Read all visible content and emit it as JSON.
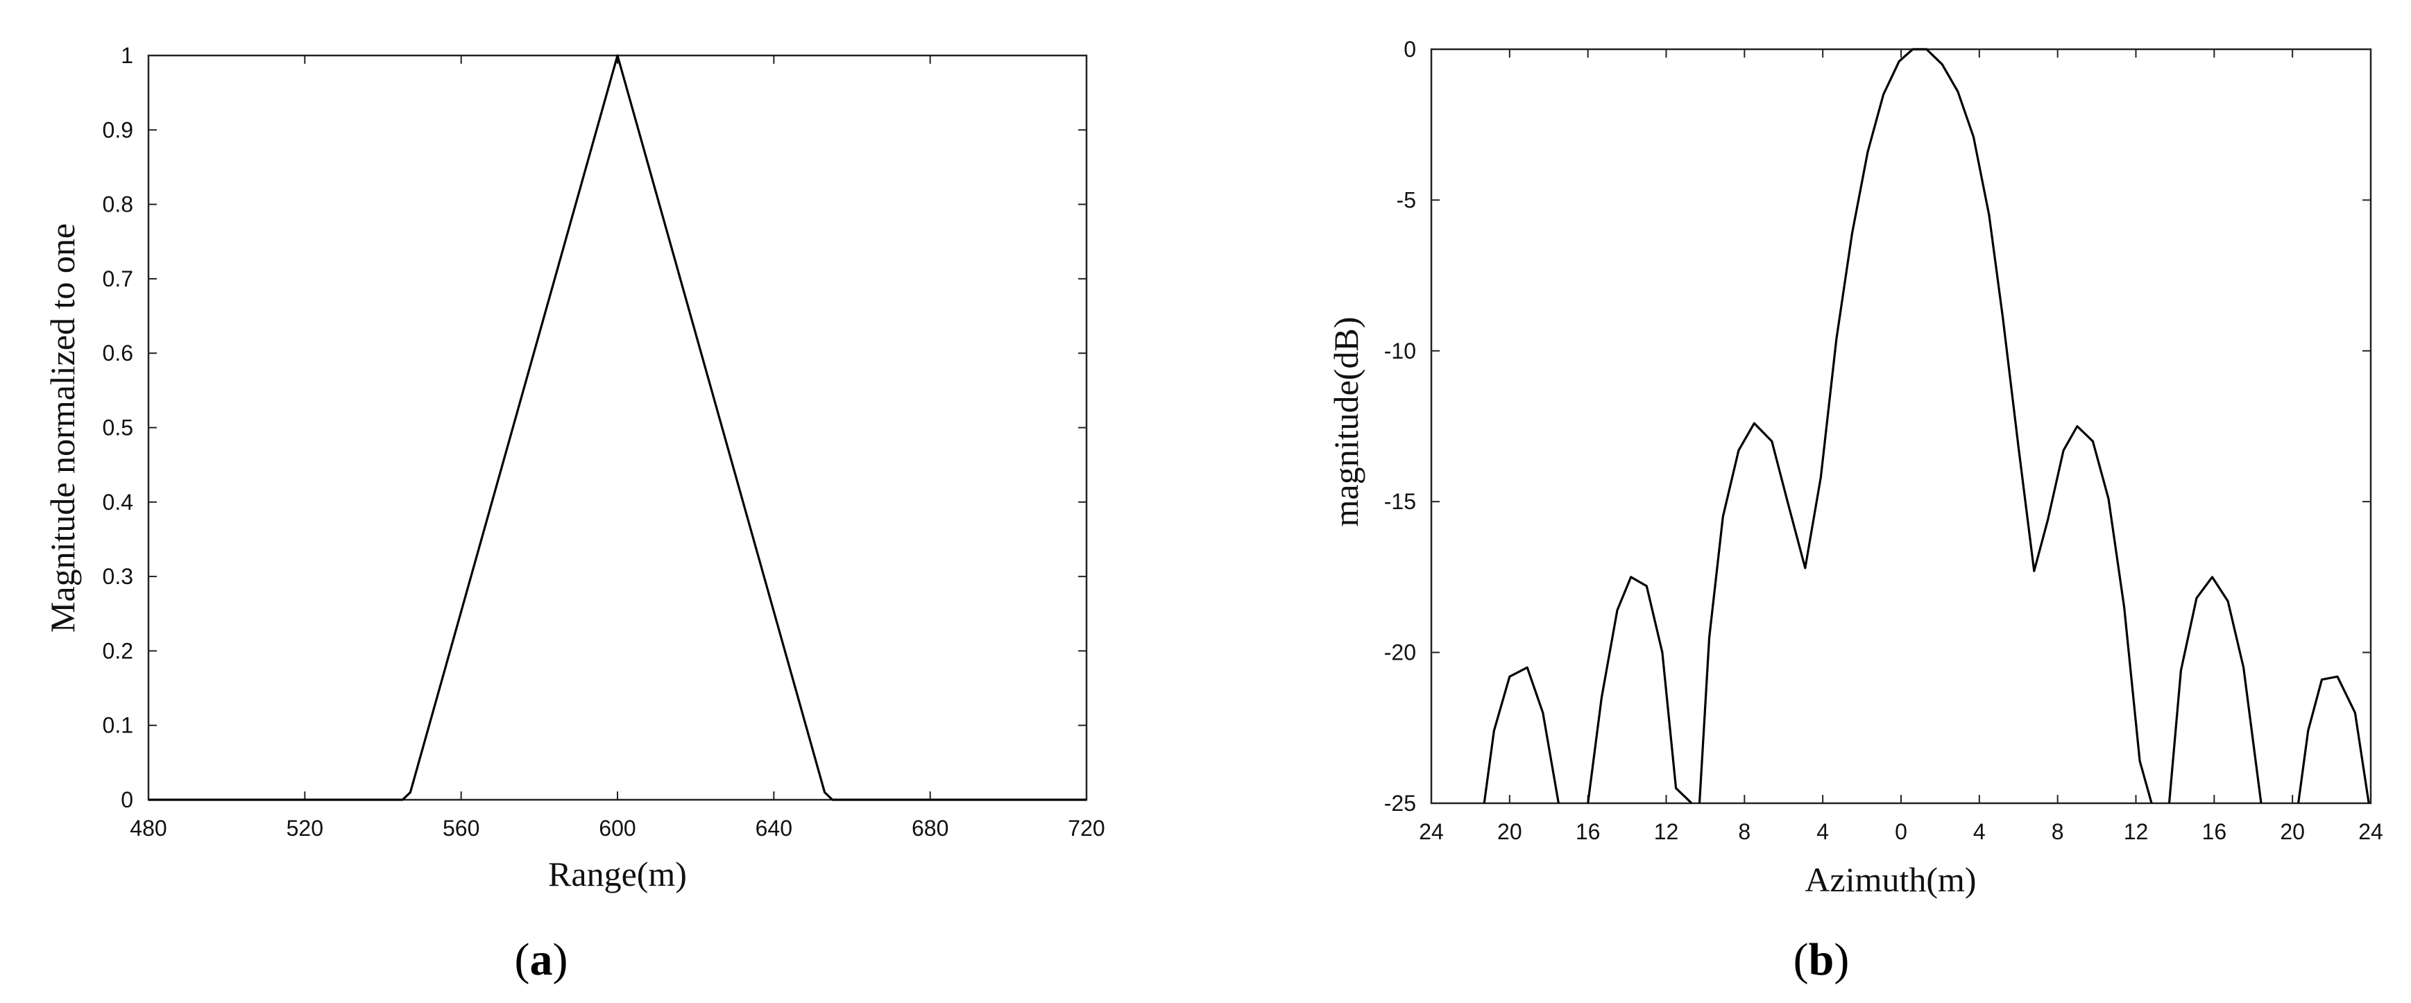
{
  "chart_data": [
    {
      "panel_label": "a",
      "type": "line",
      "title": "",
      "xlabel": "Range(m)",
      "ylabel": "Magnitude normalized to one",
      "xlim": [
        480,
        720
      ],
      "ylim": [
        0,
        1
      ],
      "xticks": [
        480,
        520,
        560,
        600,
        640,
        680,
        720
      ],
      "xtick_labels": [
        "480",
        "520",
        "560",
        "600",
        "640",
        "680",
        "720"
      ],
      "yticks": [
        0,
        0.1,
        0.2,
        0.3,
        0.4,
        0.5,
        0.6,
        0.7,
        0.8,
        0.9,
        1
      ],
      "ytick_labels": [
        "0",
        "0.1",
        "0.2",
        "0.3",
        "0.4",
        "0.5",
        "0.6",
        "0.7",
        "0.8",
        "0.9",
        "1"
      ],
      "grid": false,
      "series": [
        {
          "color": "#000000",
          "x": [
            480,
            545,
            547,
            600,
            653,
            655,
            720
          ],
          "y": [
            0,
            0,
            0.01,
            1,
            0.01,
            0,
            0
          ]
        }
      ]
    },
    {
      "panel_label": "b",
      "type": "line",
      "title": "",
      "xlabel": "Azimuth(m)",
      "ylabel": "magnitude(dB)",
      "xlim": [
        -24,
        24
      ],
      "ylim": [
        -25,
        0
      ],
      "xticks": [
        -24,
        -20,
        -16,
        -12,
        -8,
        -4,
        0,
        4,
        8,
        12,
        16,
        20,
        24
      ],
      "xtick_labels": [
        "24",
        "20",
        "16",
        "12",
        "8",
        "4",
        "0",
        "4",
        "8",
        "12",
        "16",
        "20",
        "24"
      ],
      "yticks": [
        -25,
        -20,
        -15,
        -10,
        -5,
        0
      ],
      "ytick_labels": [
        "-25",
        "-20",
        "-15",
        "-10",
        "-5",
        "0"
      ],
      "grid": false,
      "series": [
        {
          "color": "#000000",
          "segments": [
            {
              "x": [
                -21.3,
                -20.8,
                -20.0,
                -19.1,
                -18.3,
                -17.5
              ],
              "y": [
                -25,
                -22.6,
                -20.8,
                -20.5,
                -22.0,
                -25
              ]
            },
            {
              "x": [
                -16.0,
                -15.3,
                -14.5,
                -13.8,
                -13.0,
                -12.2,
                -11.5,
                -10.7
              ],
              "y": [
                -25,
                -21.5,
                -18.6,
                -17.5,
                -17.8,
                -20.0,
                -24.5,
                -25
              ]
            },
            {
              "x": [
                -10.3,
                -9.8,
                -9.1,
                -8.3,
                -7.5,
                -6.6,
                -5.8,
                -4.9,
                -4.1,
                -3.3,
                -2.5,
                -1.7,
                -0.9,
                -0.1,
                0.6,
                1.3,
                2.1,
                2.9,
                3.7,
                4.5,
                5.2,
                6.0,
                6.8,
                7.5,
                8.3,
                9.0,
                9.8,
                10.6,
                11.4,
                12.2,
                12.8
              ],
              "y": [
                -25,
                -19.5,
                -15.5,
                -13.3,
                -12.4,
                -13.0,
                -15.0,
                -17.2,
                -14.2,
                -9.6,
                -6.1,
                -3.4,
                -1.5,
                -0.4,
                0.0,
                0.0,
                -0.5,
                -1.4,
                -2.9,
                -5.5,
                -8.9,
                -13.2,
                -17.3,
                -15.6,
                -13.3,
                -12.5,
                -13.0,
                -14.9,
                -18.5,
                -23.6,
                -25
              ]
            },
            {
              "x": [
                13.7,
                14.3,
                15.1,
                15.9,
                16.7,
                17.5,
                18.4
              ],
              "y": [
                -25,
                -20.6,
                -18.2,
                -17.5,
                -18.3,
                -20.5,
                -25
              ]
            },
            {
              "x": [
                20.3,
                20.8,
                21.5,
                22.3,
                23.2,
                23.9
              ],
              "y": [
                -25,
                -22.6,
                -20.9,
                -20.8,
                -22.0,
                -25
              ]
            }
          ]
        }
      ]
    }
  ]
}
